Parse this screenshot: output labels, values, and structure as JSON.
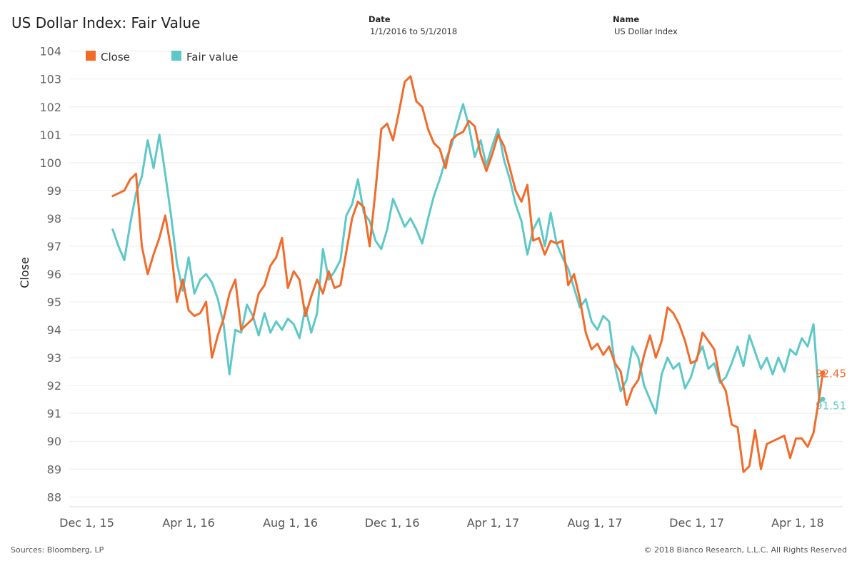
{
  "header": {
    "title_main": "US Dollar Index:",
    "title_sub": "Fair Value",
    "date_label": "Date",
    "date_value": "1/1/2016 to 5/1/2018",
    "name_label": "Name",
    "name_value": "US Dollar Index"
  },
  "footer": {
    "sources": "Sources: Bloomberg, LP",
    "copyright": "© 2018 Bianco Research, L.L.C. All Rights Reserved"
  },
  "chart_data": {
    "type": "line",
    "ylabel": "Close",
    "ylim": [
      87.7,
      104.3
    ],
    "yticks": [
      88,
      89,
      90,
      91,
      92,
      93,
      94,
      95,
      96,
      97,
      98,
      99,
      100,
      101,
      102,
      103,
      104
    ],
    "xticks": [
      "Dec 1, 15",
      "Apr 1, 16",
      "Aug 1, 16",
      "Dec 1, 16",
      "Apr 1, 17",
      "Aug 1, 17",
      "Dec 1, 17",
      "Apr 1, 18"
    ],
    "xtick_dates": [
      "2015-12-01",
      "2016-04-01",
      "2016-08-01",
      "2016-12-01",
      "2017-04-01",
      "2017-08-01",
      "2017-12-01",
      "2018-04-01"
    ],
    "xlim": [
      "2015-11-10",
      "2018-05-25"
    ],
    "grid": "horizontal",
    "legend": "top-left",
    "colors": {
      "close": "#f26b2a",
      "fair": "#5ec8c8"
    },
    "series": [
      {
        "name": "Close",
        "end_label": "92.45",
        "points": [
          [
            "2016-01-01",
            98.8
          ],
          [
            "2016-01-08",
            98.9
          ],
          [
            "2016-01-15",
            99.0
          ],
          [
            "2016-01-22",
            99.4
          ],
          [
            "2016-01-29",
            99.6
          ],
          [
            "2016-02-05",
            97.0
          ],
          [
            "2016-02-12",
            96.0
          ],
          [
            "2016-02-19",
            96.7
          ],
          [
            "2016-02-26",
            97.3
          ],
          [
            "2016-03-04",
            98.1
          ],
          [
            "2016-03-11",
            96.9
          ],
          [
            "2016-03-18",
            95.0
          ],
          [
            "2016-03-25",
            95.8
          ],
          [
            "2016-04-01",
            94.7
          ],
          [
            "2016-04-08",
            94.5
          ],
          [
            "2016-04-15",
            94.6
          ],
          [
            "2016-04-22",
            95.0
          ],
          [
            "2016-04-29",
            93.0
          ],
          [
            "2016-05-06",
            93.8
          ],
          [
            "2016-05-13",
            94.4
          ],
          [
            "2016-05-20",
            95.3
          ],
          [
            "2016-05-27",
            95.8
          ],
          [
            "2016-06-03",
            94.0
          ],
          [
            "2016-06-10",
            94.2
          ],
          [
            "2016-06-17",
            94.4
          ],
          [
            "2016-06-24",
            95.3
          ],
          [
            "2016-07-01",
            95.6
          ],
          [
            "2016-07-08",
            96.3
          ],
          [
            "2016-07-15",
            96.6
          ],
          [
            "2016-07-22",
            97.3
          ],
          [
            "2016-07-29",
            95.5
          ],
          [
            "2016-08-05",
            96.1
          ],
          [
            "2016-08-12",
            95.8
          ],
          [
            "2016-08-19",
            94.5
          ],
          [
            "2016-08-26",
            95.2
          ],
          [
            "2016-09-02",
            95.8
          ],
          [
            "2016-09-09",
            95.3
          ],
          [
            "2016-09-16",
            96.1
          ],
          [
            "2016-09-23",
            95.5
          ],
          [
            "2016-09-30",
            95.6
          ],
          [
            "2016-10-07",
            96.8
          ],
          [
            "2016-10-14",
            98.0
          ],
          [
            "2016-10-21",
            98.6
          ],
          [
            "2016-10-28",
            98.4
          ],
          [
            "2016-11-04",
            97.0
          ],
          [
            "2016-11-11",
            99.0
          ],
          [
            "2016-11-18",
            101.2
          ],
          [
            "2016-11-25",
            101.4
          ],
          [
            "2016-12-02",
            100.8
          ],
          [
            "2016-12-09",
            101.8
          ],
          [
            "2016-12-16",
            102.9
          ],
          [
            "2016-12-23",
            103.1
          ],
          [
            "2016-12-30",
            102.2
          ],
          [
            "2017-01-06",
            102.0
          ],
          [
            "2017-01-13",
            101.2
          ],
          [
            "2017-01-20",
            100.7
          ],
          [
            "2017-01-27",
            100.5
          ],
          [
            "2017-02-03",
            99.8
          ],
          [
            "2017-02-10",
            100.8
          ],
          [
            "2017-02-17",
            101.0
          ],
          [
            "2017-02-24",
            101.1
          ],
          [
            "2017-03-03",
            101.5
          ],
          [
            "2017-03-10",
            101.3
          ],
          [
            "2017-03-17",
            100.3
          ],
          [
            "2017-03-24",
            99.7
          ],
          [
            "2017-03-31",
            100.3
          ],
          [
            "2017-04-07",
            101.0
          ],
          [
            "2017-04-14",
            100.6
          ],
          [
            "2017-04-21",
            99.8
          ],
          [
            "2017-04-28",
            99.0
          ],
          [
            "2017-05-05",
            98.6
          ],
          [
            "2017-05-12",
            99.2
          ],
          [
            "2017-05-19",
            97.2
          ],
          [
            "2017-05-26",
            97.3
          ],
          [
            "2017-06-02",
            96.7
          ],
          [
            "2017-06-09",
            97.2
          ],
          [
            "2017-06-16",
            97.1
          ],
          [
            "2017-06-23",
            97.2
          ],
          [
            "2017-06-30",
            95.6
          ],
          [
            "2017-07-07",
            96.0
          ],
          [
            "2017-07-14",
            95.1
          ],
          [
            "2017-07-21",
            93.9
          ],
          [
            "2017-07-28",
            93.3
          ],
          [
            "2017-08-04",
            93.5
          ],
          [
            "2017-08-11",
            93.1
          ],
          [
            "2017-08-18",
            93.4
          ],
          [
            "2017-08-25",
            92.8
          ],
          [
            "2017-09-01",
            92.5
          ],
          [
            "2017-09-08",
            91.3
          ],
          [
            "2017-09-15",
            91.9
          ],
          [
            "2017-09-22",
            92.2
          ],
          [
            "2017-09-29",
            93.1
          ],
          [
            "2017-10-06",
            93.8
          ],
          [
            "2017-10-13",
            93.0
          ],
          [
            "2017-10-20",
            93.6
          ],
          [
            "2017-10-27",
            94.8
          ],
          [
            "2017-11-03",
            94.6
          ],
          [
            "2017-11-10",
            94.2
          ],
          [
            "2017-11-17",
            93.6
          ],
          [
            "2017-11-24",
            92.8
          ],
          [
            "2017-12-01",
            92.9
          ],
          [
            "2017-12-08",
            93.9
          ],
          [
            "2017-12-15",
            93.6
          ],
          [
            "2017-12-22",
            93.3
          ],
          [
            "2017-12-29",
            92.2
          ],
          [
            "2018-01-05",
            91.8
          ],
          [
            "2018-01-12",
            90.6
          ],
          [
            "2018-01-19",
            90.5
          ],
          [
            "2018-01-26",
            88.9
          ],
          [
            "2018-02-02",
            89.1
          ],
          [
            "2018-02-09",
            90.4
          ],
          [
            "2018-02-16",
            89.0
          ],
          [
            "2018-02-23",
            89.9
          ],
          [
            "2018-03-02",
            90.0
          ],
          [
            "2018-03-09",
            90.1
          ],
          [
            "2018-03-16",
            90.2
          ],
          [
            "2018-03-23",
            89.4
          ],
          [
            "2018-03-30",
            90.1
          ],
          [
            "2018-04-06",
            90.1
          ],
          [
            "2018-04-13",
            89.8
          ],
          [
            "2018-04-20",
            90.3
          ],
          [
            "2018-04-27",
            91.6
          ],
          [
            "2018-05-01",
            92.45
          ]
        ]
      },
      {
        "name": "Fair value",
        "end_label": "91.51",
        "points": [
          [
            "2016-01-01",
            97.6
          ],
          [
            "2016-01-08",
            97.0
          ],
          [
            "2016-01-15",
            96.5
          ],
          [
            "2016-01-22",
            97.8
          ],
          [
            "2016-01-29",
            98.9
          ],
          [
            "2016-02-05",
            99.5
          ],
          [
            "2016-02-12",
            100.8
          ],
          [
            "2016-02-19",
            99.8
          ],
          [
            "2016-02-26",
            101.0
          ],
          [
            "2016-03-04",
            99.6
          ],
          [
            "2016-03-11",
            98.1
          ],
          [
            "2016-03-18",
            96.4
          ],
          [
            "2016-03-25",
            95.4
          ],
          [
            "2016-04-01",
            96.6
          ],
          [
            "2016-04-08",
            95.3
          ],
          [
            "2016-04-15",
            95.8
          ],
          [
            "2016-04-22",
            96.0
          ],
          [
            "2016-04-29",
            95.7
          ],
          [
            "2016-05-06",
            95.1
          ],
          [
            "2016-05-13",
            94.2
          ],
          [
            "2016-05-20",
            92.4
          ],
          [
            "2016-05-27",
            94.0
          ],
          [
            "2016-06-03",
            93.9
          ],
          [
            "2016-06-10",
            94.9
          ],
          [
            "2016-06-17",
            94.5
          ],
          [
            "2016-06-24",
            93.8
          ],
          [
            "2016-07-01",
            94.6
          ],
          [
            "2016-07-08",
            93.9
          ],
          [
            "2016-07-15",
            94.3
          ],
          [
            "2016-07-22",
            94.0
          ],
          [
            "2016-07-29",
            94.4
          ],
          [
            "2016-08-05",
            94.2
          ],
          [
            "2016-08-12",
            93.7
          ],
          [
            "2016-08-19",
            94.8
          ],
          [
            "2016-08-26",
            93.9
          ],
          [
            "2016-09-02",
            94.6
          ],
          [
            "2016-09-09",
            96.9
          ],
          [
            "2016-09-16",
            95.8
          ],
          [
            "2016-09-23",
            96.1
          ],
          [
            "2016-09-30",
            96.5
          ],
          [
            "2016-10-07",
            98.1
          ],
          [
            "2016-10-14",
            98.5
          ],
          [
            "2016-10-21",
            99.4
          ],
          [
            "2016-10-28",
            98.2
          ],
          [
            "2016-11-04",
            97.9
          ],
          [
            "2016-11-11",
            97.2
          ],
          [
            "2016-11-18",
            96.9
          ],
          [
            "2016-11-25",
            97.6
          ],
          [
            "2016-12-02",
            98.7
          ],
          [
            "2016-12-09",
            98.2
          ],
          [
            "2016-12-16",
            97.7
          ],
          [
            "2016-12-23",
            98.0
          ],
          [
            "2016-12-30",
            97.6
          ],
          [
            "2017-01-06",
            97.1
          ],
          [
            "2017-01-13",
            98.0
          ],
          [
            "2017-01-20",
            98.8
          ],
          [
            "2017-01-27",
            99.4
          ],
          [
            "2017-02-03",
            100.1
          ],
          [
            "2017-02-10",
            100.6
          ],
          [
            "2017-02-17",
            101.4
          ],
          [
            "2017-02-24",
            102.1
          ],
          [
            "2017-03-03",
            101.3
          ],
          [
            "2017-03-10",
            100.2
          ],
          [
            "2017-03-17",
            100.8
          ],
          [
            "2017-03-24",
            99.9
          ],
          [
            "2017-03-31",
            100.6
          ],
          [
            "2017-04-07",
            101.2
          ],
          [
            "2017-04-14",
            100.1
          ],
          [
            "2017-04-21",
            99.4
          ],
          [
            "2017-04-28",
            98.5
          ],
          [
            "2017-05-05",
            97.9
          ],
          [
            "2017-05-12",
            96.7
          ],
          [
            "2017-05-19",
            97.6
          ],
          [
            "2017-05-26",
            98.0
          ],
          [
            "2017-06-02",
            97.0
          ],
          [
            "2017-06-09",
            98.2
          ],
          [
            "2017-06-16",
            97.1
          ],
          [
            "2017-06-23",
            96.6
          ],
          [
            "2017-06-30",
            96.2
          ],
          [
            "2017-07-07",
            95.5
          ],
          [
            "2017-07-14",
            94.8
          ],
          [
            "2017-07-21",
            95.1
          ],
          [
            "2017-07-28",
            94.3
          ],
          [
            "2017-08-04",
            94.0
          ],
          [
            "2017-08-11",
            94.5
          ],
          [
            "2017-08-18",
            94.3
          ],
          [
            "2017-08-25",
            92.7
          ],
          [
            "2017-09-01",
            91.8
          ],
          [
            "2017-09-08",
            92.2
          ],
          [
            "2017-09-15",
            93.4
          ],
          [
            "2017-09-22",
            93.0
          ],
          [
            "2017-09-29",
            92.0
          ],
          [
            "2017-10-06",
            91.5
          ],
          [
            "2017-10-13",
            91.0
          ],
          [
            "2017-10-20",
            92.4
          ],
          [
            "2017-10-27",
            93.0
          ],
          [
            "2017-11-03",
            92.6
          ],
          [
            "2017-11-10",
            92.8
          ],
          [
            "2017-11-17",
            91.9
          ],
          [
            "2017-11-24",
            92.3
          ],
          [
            "2017-12-01",
            93.0
          ],
          [
            "2017-12-08",
            93.4
          ],
          [
            "2017-12-15",
            92.6
          ],
          [
            "2017-12-22",
            92.8
          ],
          [
            "2017-12-29",
            92.1
          ],
          [
            "2018-01-05",
            92.3
          ],
          [
            "2018-01-12",
            92.8
          ],
          [
            "2018-01-19",
            93.4
          ],
          [
            "2018-01-26",
            92.7
          ],
          [
            "2018-02-02",
            93.8
          ],
          [
            "2018-02-09",
            93.2
          ],
          [
            "2018-02-16",
            92.6
          ],
          [
            "2018-02-23",
            93.0
          ],
          [
            "2018-03-02",
            92.4
          ],
          [
            "2018-03-09",
            93.0
          ],
          [
            "2018-03-16",
            92.5
          ],
          [
            "2018-03-23",
            93.3
          ],
          [
            "2018-03-30",
            93.1
          ],
          [
            "2018-04-06",
            93.7
          ],
          [
            "2018-04-13",
            93.4
          ],
          [
            "2018-04-20",
            94.2
          ],
          [
            "2018-04-27",
            91.4
          ],
          [
            "2018-05-01",
            91.51
          ]
        ]
      }
    ]
  }
}
